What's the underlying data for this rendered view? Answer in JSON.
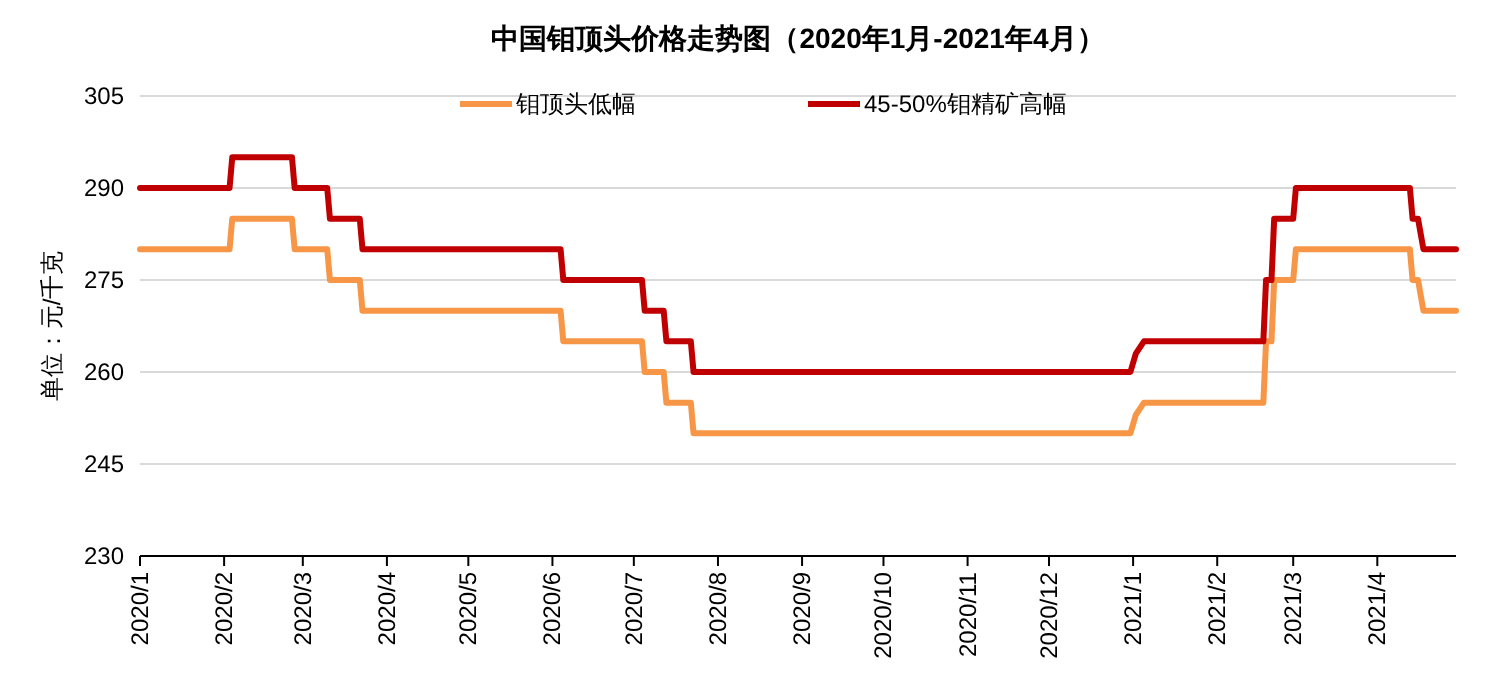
{
  "chart_data": {
    "type": "line",
    "title": "中国钼顶头价格走势图（2020年1月-2021年4月）",
    "ylabel": "单位：元/千克",
    "series": [
      {
        "name": "钼顶头低幅",
        "color": "#f79646",
        "x": [
          "2020-01-01",
          "2020-02-03",
          "2020-02-04",
          "2020-02-26",
          "2020-02-27",
          "2020-03-10",
          "2020-03-11",
          "2020-03-22",
          "2020-03-23",
          "2020-06-04",
          "2020-06-05",
          "2020-07-04",
          "2020-07-05",
          "2020-07-12",
          "2020-07-13",
          "2020-07-22",
          "2020-07-23",
          "2020-12-31",
          "2021-01-02",
          "2021-01-05",
          "2021-02-18",
          "2021-02-19",
          "2021-02-21",
          "2021-02-22",
          "2021-03-01",
          "2021-03-02",
          "2021-04-13",
          "2021-04-14",
          "2021-04-16",
          "2021-04-18",
          "2021-04-30"
        ],
        "values": [
          280,
          280,
          285,
          285,
          280,
          280,
          275,
          275,
          270,
          270,
          265,
          265,
          260,
          260,
          255,
          255,
          250,
          250,
          253,
          255,
          255,
          265,
          265,
          275,
          275,
          280,
          280,
          275,
          275,
          270,
          270
        ]
      },
      {
        "name": "45-50%钼精矿高幅",
        "color": "#c00000",
        "x": [
          "2020-01-01",
          "2020-02-03",
          "2020-02-04",
          "2020-02-26",
          "2020-02-27",
          "2020-03-10",
          "2020-03-11",
          "2020-03-22",
          "2020-03-23",
          "2020-06-04",
          "2020-06-05",
          "2020-07-04",
          "2020-07-05",
          "2020-07-12",
          "2020-07-13",
          "2020-07-22",
          "2020-07-23",
          "2020-12-31",
          "2021-01-02",
          "2021-01-05",
          "2021-02-18",
          "2021-02-19",
          "2021-02-21",
          "2021-02-22",
          "2021-03-01",
          "2021-03-02",
          "2021-04-13",
          "2021-04-14",
          "2021-04-16",
          "2021-04-18",
          "2021-04-30"
        ],
        "values": [
          290,
          290,
          295,
          295,
          290,
          290,
          285,
          285,
          280,
          280,
          275,
          275,
          270,
          270,
          265,
          265,
          260,
          260,
          263,
          265,
          265,
          275,
          275,
          285,
          285,
          290,
          290,
          285,
          285,
          280,
          280
        ]
      }
    ],
    "xlim": [
      "2020-01-01",
      "2021-04-30"
    ],
    "xticks": [
      {
        "value": "2020-01-01",
        "label": "2020/1"
      },
      {
        "value": "2020-02-01",
        "label": "2020/2"
      },
      {
        "value": "2020-03-01",
        "label": "2020/3"
      },
      {
        "value": "2020-04-01",
        "label": "2020/4"
      },
      {
        "value": "2020-05-01",
        "label": "2020/5"
      },
      {
        "value": "2020-06-01",
        "label": "2020/6"
      },
      {
        "value": "2020-07-01",
        "label": "2020/7"
      },
      {
        "value": "2020-08-01",
        "label": "2020/8"
      },
      {
        "value": "2020-09-01",
        "label": "2020/9"
      },
      {
        "value": "2020-10-01",
        "label": "2020/10"
      },
      {
        "value": "2020-11-01",
        "label": "2020/11"
      },
      {
        "value": "2020-12-01",
        "label": "2020/12"
      },
      {
        "value": "2021-01-01",
        "label": "2021/1"
      },
      {
        "value": "2021-02-01",
        "label": "2021/2"
      },
      {
        "value": "2021-03-01",
        "label": "2021/3"
      },
      {
        "value": "2021-04-01",
        "label": "2021/4"
      }
    ],
    "ylim": [
      230,
      305
    ],
    "yticks": [
      230,
      245,
      260,
      275,
      290,
      305
    ],
    "grid": "y",
    "legend": "top",
    "marker": "none",
    "line_style": "solid"
  }
}
